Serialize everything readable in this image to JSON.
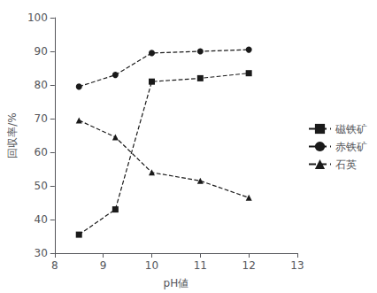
{
  "chart_data": {
    "type": "line",
    "x": [
      8.5,
      9.25,
      10.0,
      11.0,
      12.0
    ],
    "series": [
      {
        "name": "磁铁矿",
        "color": "#1a1a1a",
        "marker": "square",
        "line_style": "dashed",
        "values": [
          35.5,
          43.0,
          81.0,
          82.0,
          83.5
        ]
      },
      {
        "name": "赤铁矿",
        "color": "#1a1a1a",
        "marker": "circle",
        "line_style": "dashed",
        "values": [
          79.5,
          83.0,
          89.5,
          90.0,
          90.5
        ]
      },
      {
        "name": "石英",
        "color": "#1a1a1a",
        "marker": "triangle",
        "line_style": "dashed",
        "values": [
          69.5,
          64.5,
          54.0,
          51.5,
          46.5
        ]
      }
    ],
    "xlabel": "pH値",
    "ylabel": "回収率/%",
    "xlim": [
      8,
      13
    ],
    "ylim": [
      30,
      100
    ],
    "xticks": [
      8,
      9,
      10,
      11,
      12,
      13
    ],
    "yticks": [
      30,
      40,
      50,
      60,
      70,
      80,
      90,
      100
    ],
    "grid": false,
    "legend": "right"
  }
}
